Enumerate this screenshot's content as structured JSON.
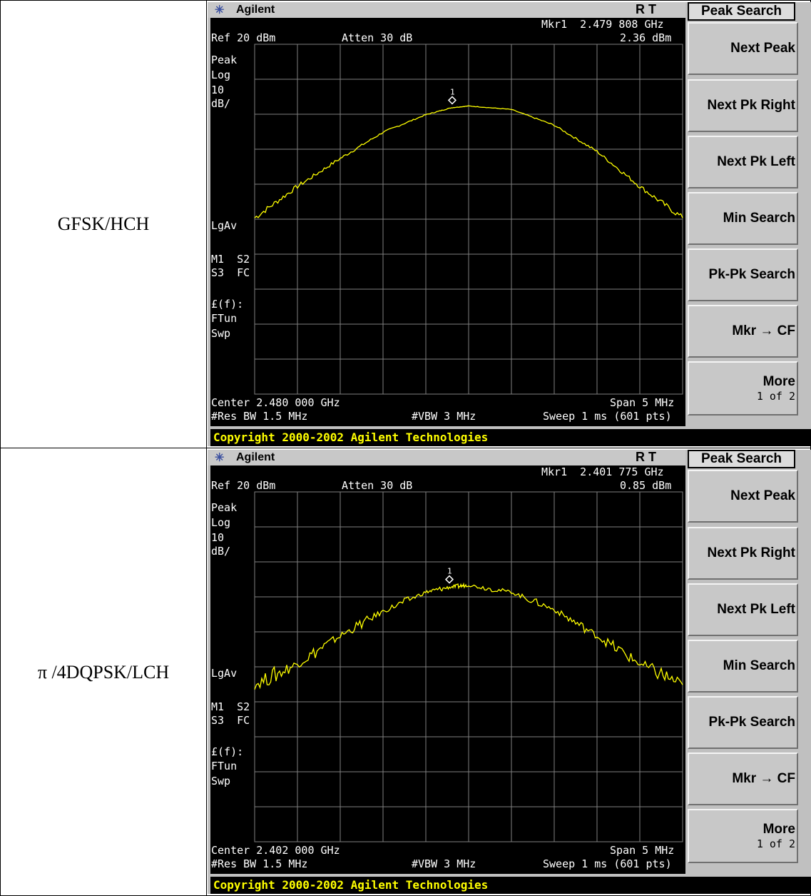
{
  "rows": [
    {
      "label": "GFSK/HCH",
      "screen": {
        "brand": "Agilent",
        "status": "R   T",
        "marker_line1": "Mkr1  2.479 808 GHz",
        "marker_line2": "2.36 dBm",
        "ref": "Ref 20 dBm",
        "atten": "Atten 30 dB",
        "side_labels": [
          "Peak",
          "Log",
          "10",
          "dB/",
          "LgAv",
          "M1  S2",
          "S3  FC",
          "£(f):",
          "FTun",
          "Swp"
        ],
        "center": "Center 2.480 000 GHz",
        "span": "Span 5 MHz",
        "res_bw": "#Res BW 1.5 MHz",
        "vbw": "#VBW 3 MHz",
        "sweep": "Sweep 1 ms (601 pts)",
        "marker_label": "1",
        "copyright": "Copyright 2000-2002 Agilent Technologies",
        "softkey_title": "Peak Search",
        "softkeys": [
          "Next Peak",
          "Next Pk Right",
          "Next Pk Left",
          "Min Search",
          "Pk-Pk Search",
          "Mkr → CF"
        ],
        "more_label": "More",
        "more_sub": "1 of 2"
      }
    },
    {
      "label": "π /4DQPSK/LCH",
      "screen": {
        "brand": "Agilent",
        "status": "R   T",
        "marker_line1": "Mkr1  2.401 775 GHz",
        "marker_line2": "0.85 dBm",
        "ref": "Ref 20 dBm",
        "atten": "Atten 30 dB",
        "side_labels": [
          "Peak",
          "Log",
          "10",
          "dB/",
          "LgAv",
          "M1  S2",
          "S3  FC",
          "£(f):",
          "FTun",
          "Swp"
        ],
        "center": "Center 2.402 000 GHz",
        "span": "Span 5 MHz",
        "res_bw": "#Res BW 1.5 MHz",
        "vbw": "#VBW 3 MHz",
        "sweep": "Sweep 1 ms (601 pts)",
        "marker_label": "1",
        "copyright": "Copyright 2000-2002 Agilent Technologies",
        "softkey_title": "Peak Search",
        "softkeys": [
          "Next Peak",
          "Next Pk Right",
          "Next Pk Left",
          "Min Search",
          "Pk-Pk Search",
          "Mkr → CF"
        ],
        "more_label": "More",
        "more_sub": "1 of 2"
      }
    }
  ],
  "chart_data": [
    {
      "type": "line",
      "title": "",
      "xlabel": "",
      "ylabel": "",
      "x_unit": "GHz",
      "y_unit": "dBm",
      "x": [
        2.4775,
        2.478,
        2.4785,
        2.479,
        2.4795,
        2.4798,
        2.48,
        2.4805,
        2.481,
        2.4815,
        2.482,
        2.4825
      ],
      "y": [
        -32,
        -23,
        -15,
        -7.5,
        -2.5,
        -0.5,
        0,
        -1,
        -5.5,
        -13,
        -23,
        -32
      ],
      "series": [
        {
          "name": "",
          "values": [
            -32,
            -23,
            -15,
            -7.5,
            -2.5,
            -0.5,
            0,
            -1,
            -5.5,
            -13,
            -23,
            -32
          ]
        }
      ],
      "marker": {
        "label": "1",
        "x": 2.479808,
        "y": 2.36
      },
      "xlim": [
        2.4775,
        2.4825
      ],
      "ylim": [
        -80,
        20
      ],
      "y_scale": "log 10 dB/div",
      "grid": true,
      "trace_color": "#ffff00",
      "background_color": "#000000"
    },
    {
      "type": "line",
      "title": "",
      "xlabel": "",
      "ylabel": "",
      "x_unit": "GHz",
      "y_unit": "dBm",
      "x": [
        2.3995,
        2.4,
        2.4005,
        2.401,
        2.4015,
        2.4018,
        2.402,
        2.4025,
        2.403,
        2.4035,
        2.404,
        2.4045
      ],
      "y": [
        -36,
        -30,
        -22,
        -15,
        -9.5,
        -8,
        -7.5,
        -9.5,
        -14.5,
        -22,
        -30,
        -36
      ],
      "series": [
        {
          "name": "",
          "values": [
            -36,
            -30,
            -22,
            -15,
            -9.5,
            -8,
            -7.5,
            -9.5,
            -14.5,
            -22,
            -30,
            -36
          ]
        }
      ],
      "marker": {
        "label": "1",
        "x": 2.401775,
        "y": 0.85
      },
      "xlim": [
        2.3995,
        2.4045
      ],
      "ylim": [
        -80,
        20
      ],
      "y_scale": "log 10 dB/div",
      "grid": true,
      "trace_color": "#ffff00",
      "background_color": "#000000"
    }
  ]
}
